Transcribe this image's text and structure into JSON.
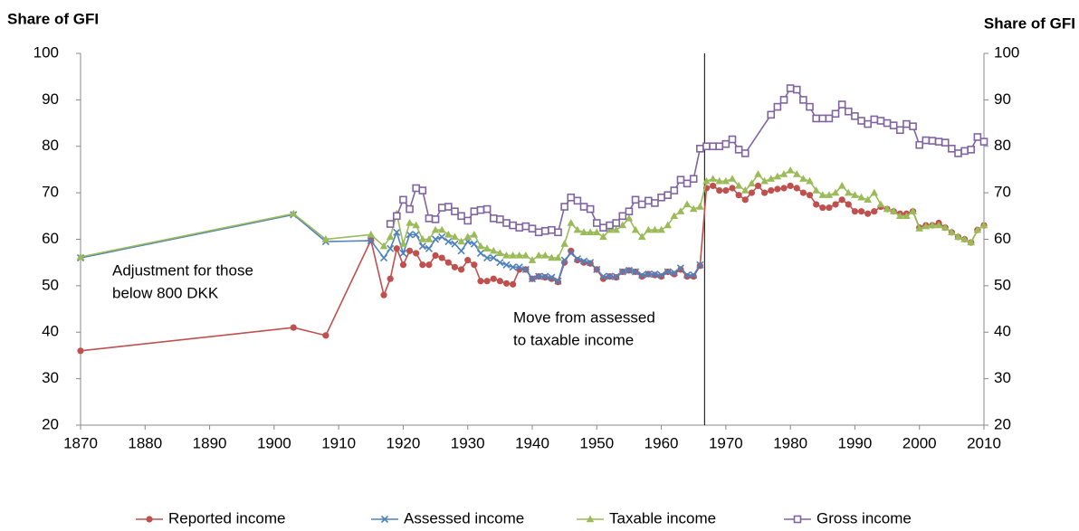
{
  "chart_data": {
    "type": "line",
    "y_label": "Share of GFI",
    "y2_label": "Share of GFI",
    "xlim": [
      1870,
      2010
    ],
    "xticks": [
      1870,
      1880,
      1890,
      1900,
      1910,
      1920,
      1930,
      1940,
      1950,
      1960,
      1970,
      1980,
      1990,
      2000,
      2010
    ],
    "ylim": [
      20,
      100
    ],
    "yticks": [
      20,
      30,
      40,
      50,
      60,
      70,
      80,
      90,
      100
    ],
    "y2lim": [
      20,
      100
    ],
    "y2ticks": [
      20,
      30,
      40,
      50,
      60,
      70,
      80,
      90,
      100
    ],
    "vline": 1966.7,
    "annotations": [
      {
        "lines": [
          "Adjustment for those",
          "below 800 DKK"
        ]
      },
      {
        "lines": [
          "Move from assessed",
          "to taxable income"
        ]
      }
    ],
    "legend": "bottom",
    "series": [
      {
        "name": "Reported income",
        "color": "#c0504d",
        "marker": "circle",
        "x": [
          1870,
          1903,
          1908,
          1915,
          1917,
          1918,
          1919,
          1920,
          1921,
          1922,
          1923,
          1924,
          1925,
          1926,
          1927,
          1928,
          1929,
          1930,
          1931,
          1932,
          1933,
          1934,
          1935,
          1936,
          1937,
          1938,
          1939,
          1940,
          1941,
          1942,
          1943,
          1944,
          1945,
          1946,
          1947,
          1948,
          1949,
          1950,
          1951,
          1952,
          1953,
          1954,
          1955,
          1956,
          1957,
          1958,
          1959,
          1960,
          1961,
          1962,
          1963,
          1964,
          1965,
          1966,
          1967,
          1968,
          1969,
          1970,
          1971,
          1972,
          1973,
          1974,
          1975,
          1976,
          1977,
          1978,
          1979,
          1980,
          1981,
          1982,
          1983,
          1984,
          1985,
          1986,
          1987,
          1988,
          1989,
          1990,
          1991,
          1992,
          1993,
          1994,
          1995,
          1996,
          1997,
          1998,
          1999,
          2000,
          2001,
          2002,
          2003,
          2004,
          2005,
          2006,
          2007,
          2008,
          2009,
          2010
        ],
        "values": [
          36,
          41,
          39.3,
          59.8,
          48,
          51.5,
          58,
          54.5,
          57.5,
          57,
          54.5,
          54.5,
          56.5,
          56,
          55,
          54,
          53.5,
          55.5,
          54.5,
          51,
          51,
          51.5,
          51,
          50.5,
          50.3,
          53.5,
          53.5,
          51.5,
          52,
          51.8,
          51.5,
          50.8,
          55,
          57.5,
          55.5,
          55,
          54.8,
          53.5,
          51.5,
          52,
          51.8,
          53,
          53.3,
          53,
          52,
          52.5,
          52.3,
          52,
          53,
          52.5,
          53.5,
          52,
          52,
          54.3,
          71,
          71.5,
          70.5,
          70.5,
          71,
          69.5,
          68.5,
          70,
          71.5,
          70,
          70.5,
          70.8,
          71,
          71.5,
          71,
          70,
          69.5,
          67.5,
          66.8,
          66.8,
          67.5,
          68.5,
          67.5,
          66,
          66,
          65.5,
          66,
          67,
          66.5,
          66,
          65.5,
          65.5,
          66,
          62.5,
          63,
          63,
          63.5,
          62.5,
          61.5,
          60.5,
          60,
          59.3,
          62,
          63
        ]
      },
      {
        "name": "Assessed income",
        "color": "#4f81bd",
        "marker": "x",
        "x": [
          1870,
          1903,
          1908,
          1915,
          1917,
          1918,
          1919,
          1920,
          1921,
          1922,
          1923,
          1924,
          1925,
          1926,
          1927,
          1928,
          1929,
          1930,
          1931,
          1932,
          1933,
          1934,
          1935,
          1936,
          1937,
          1938,
          1939,
          1940,
          1941,
          1942,
          1943,
          1944,
          1945,
          1946,
          1947,
          1948,
          1949,
          1950,
          1951,
          1952,
          1953,
          1954,
          1955,
          1956,
          1957,
          1958,
          1959,
          1960,
          1961,
          1962,
          1963,
          1964,
          1965,
          1966
        ],
        "values": [
          56,
          65.3,
          59.5,
          59.7,
          56,
          58,
          61.5,
          57,
          61,
          61,
          58.5,
          58,
          60,
          60.5,
          59.5,
          59,
          57.5,
          59.5,
          59,
          57,
          56,
          56,
          55,
          54.5,
          54,
          54,
          53.5,
          51.5,
          52,
          52,
          51.8,
          51,
          55.5,
          57,
          55.8,
          55.3,
          55,
          53.5,
          52,
          52,
          52,
          53,
          53.3,
          53,
          52.3,
          52.5,
          52.5,
          52.3,
          53,
          52.8,
          53.8,
          52.3,
          52.3,
          54.5
        ]
      },
      {
        "name": "Taxable income",
        "color": "#9bbb59",
        "marker": "triangle",
        "x": [
          1870,
          1903,
          1908,
          1915,
          1917,
          1918,
          1919,
          1920,
          1921,
          1922,
          1923,
          1924,
          1925,
          1926,
          1927,
          1928,
          1929,
          1930,
          1931,
          1932,
          1933,
          1934,
          1935,
          1936,
          1937,
          1938,
          1939,
          1940,
          1941,
          1942,
          1943,
          1944,
          1945,
          1946,
          1947,
          1948,
          1949,
          1950,
          1951,
          1952,
          1953,
          1954,
          1955,
          1956,
          1957,
          1958,
          1959,
          1960,
          1961,
          1962,
          1963,
          1964,
          1965,
          1966,
          1967,
          1968,
          1969,
          1970,
          1971,
          1972,
          1973,
          1974,
          1975,
          1976,
          1977,
          1978,
          1979,
          1980,
          1981,
          1982,
          1983,
          1984,
          1985,
          1986,
          1987,
          1988,
          1989,
          1990,
          1991,
          1992,
          1993,
          1994,
          1995,
          1996,
          1997,
          1998,
          1999,
          2000,
          2001,
          2002,
          2003,
          2004,
          2005,
          2006,
          2007,
          2008,
          2009,
          2010
        ],
        "values": [
          56.2,
          65.5,
          60,
          61,
          58.5,
          60.5,
          65.5,
          59,
          63.5,
          63,
          60,
          60,
          62,
          62,
          61,
          60.5,
          59.5,
          60.5,
          61,
          58.5,
          58,
          57.5,
          57,
          56.5,
          56.5,
          56.5,
          56.5,
          55.5,
          56.5,
          56.5,
          56,
          56,
          59,
          63.5,
          62,
          61.5,
          61.5,
          61.5,
          60.5,
          62,
          62,
          63,
          64.5,
          62,
          60.5,
          62,
          62,
          62,
          63,
          65,
          66,
          67.5,
          66.5,
          67,
          72.5,
          73,
          72.5,
          72.5,
          73,
          71.5,
          70.5,
          72,
          74,
          72.5,
          73,
          73.5,
          74,
          74.8,
          74,
          73,
          72.5,
          70.5,
          69.5,
          69.5,
          70,
          71.5,
          70,
          69.5,
          69,
          68.5,
          70,
          67.5,
          66.5,
          66,
          65,
          65,
          66,
          62.3,
          62.8,
          63,
          63,
          62.5,
          61.5,
          60.5,
          60,
          59.3,
          62,
          63
        ]
      },
      {
        "name": "Gross income",
        "color": "#8064a2",
        "marker": "square",
        "x": [
          1918,
          1919,
          1920,
          1921,
          1922,
          1923,
          1924,
          1925,
          1926,
          1927,
          1928,
          1929,
          1930,
          1931,
          1932,
          1933,
          1934,
          1935,
          1936,
          1937,
          1938,
          1939,
          1940,
          1941,
          1942,
          1943,
          1944,
          1945,
          1946,
          1947,
          1948,
          1949,
          1950,
          1951,
          1952,
          1953,
          1954,
          1955,
          1956,
          1957,
          1958,
          1959,
          1960,
          1961,
          1962,
          1963,
          1964,
          1965,
          1966,
          1967,
          1968,
          1969,
          1970,
          1971,
          1972,
          1973,
          1977,
          1978,
          1979,
          1980,
          1981,
          1982,
          1983,
          1984,
          1985,
          1986,
          1987,
          1988,
          1989,
          1990,
          1991,
          1992,
          1993,
          1994,
          1995,
          1996,
          1997,
          1998,
          1999,
          2000,
          2001,
          2002,
          2003,
          2004,
          2005,
          2006,
          2007,
          2008,
          2009,
          2010
        ],
        "values": [
          63.3,
          65,
          68.5,
          66.5,
          71,
          70.5,
          64.5,
          64.3,
          66.8,
          67,
          66,
          65,
          64,
          66,
          66.3,
          66.5,
          64.5,
          64.3,
          63.5,
          63,
          62.5,
          62.8,
          62.3,
          61.5,
          61.8,
          62,
          61.5,
          67,
          69,
          68.3,
          67,
          66.5,
          63.5,
          62.5,
          63,
          63.5,
          65,
          66,
          68.5,
          67.5,
          68.3,
          67.8,
          69,
          69.5,
          70.5,
          72.8,
          72,
          73,
          79.5,
          80,
          80,
          80,
          80.5,
          81.5,
          79.3,
          78.5,
          86.8,
          88.5,
          90,
          92.5,
          92.2,
          90,
          88.5,
          86,
          86,
          86,
          87,
          89,
          87.5,
          86.5,
          85.5,
          84.8,
          85.8,
          85.5,
          85,
          84.5,
          83.5,
          84.8,
          84.3,
          80.3,
          81.3,
          81.2,
          81,
          80.8,
          79.5,
          78.5,
          79,
          79.3,
          82,
          81
        ]
      }
    ]
  }
}
